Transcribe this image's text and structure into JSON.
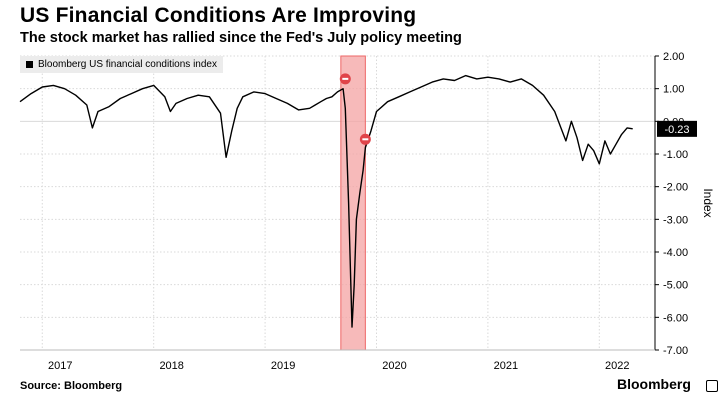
{
  "header": {
    "title": "US Financial Conditions Are Improving",
    "subtitle": "The stock market has rallied since the Fed's July policy meeting"
  },
  "footer": {
    "source": "Source: Bloomberg",
    "brand": "Bloomberg"
  },
  "chart_data": {
    "type": "line",
    "ylabel": "Index",
    "ylim": [
      -7,
      2
    ],
    "yticks": [
      2,
      1,
      0,
      -1,
      -2,
      -3,
      -4,
      -5,
      -6,
      -7
    ],
    "ytick_labels": [
      "2.00",
      "1.00",
      "0.00",
      "-1.00",
      "-2.00",
      "-3.00",
      "-4.00",
      "-5.00",
      "-6.00",
      "-7.00"
    ],
    "xlim": [
      2016.8,
      2022.5
    ],
    "xticks": [
      2017,
      2018,
      2019,
      2020,
      2021,
      2022
    ],
    "xtick_labels": [
      "2017",
      "2018",
      "2019",
      "2020",
      "2021",
      "2022"
    ],
    "grid": true,
    "legend": {
      "position": "top-left",
      "label": "Bloomberg US financial conditions index",
      "color": "#000000"
    },
    "last_value_label": "-0.23",
    "highlight": {
      "x_start": 2019.68,
      "x_end": 2019.9,
      "color": "#f4a3a3"
    },
    "markers": [
      {
        "x": 2019.72,
        "y": 1.3,
        "color": "#e0444a"
      },
      {
        "x": 2019.9,
        "y": -0.55,
        "color": "#e0444a"
      }
    ],
    "series": [
      {
        "name": "Bloomberg US financial conditions index",
        "color": "#000000",
        "x": [
          2016.8,
          2016.9,
          2017.0,
          2017.1,
          2017.2,
          2017.3,
          2017.4,
          2017.45,
          2017.5,
          2017.6,
          2017.7,
          2017.8,
          2017.9,
          2018.0,
          2018.1,
          2018.15,
          2018.2,
          2018.3,
          2018.4,
          2018.5,
          2018.6,
          2018.65,
          2018.7,
          2018.75,
          2018.8,
          2018.9,
          2019.0,
          2019.1,
          2019.2,
          2019.3,
          2019.4,
          2019.45,
          2019.5,
          2019.55,
          2019.6,
          2019.65,
          2019.7,
          2019.72,
          2019.75,
          2019.78,
          2019.8,
          2019.82,
          2019.85,
          2019.88,
          2019.9,
          2019.95,
          2020.0,
          2020.1,
          2020.2,
          2020.3,
          2020.4,
          2020.5,
          2020.6,
          2020.7,
          2020.8,
          2020.9,
          2021.0,
          2021.1,
          2021.2,
          2021.3,
          2021.4,
          2021.5,
          2021.6,
          2021.7,
          2021.75,
          2021.8,
          2021.85,
          2021.9,
          2021.95,
          2022.0,
          2022.05,
          2022.1,
          2022.15,
          2022.2,
          2022.25,
          2022.3
        ],
        "y": [
          0.6,
          0.85,
          1.05,
          1.1,
          1.0,
          0.8,
          0.5,
          -0.2,
          0.3,
          0.45,
          0.7,
          0.85,
          1.0,
          1.1,
          0.75,
          0.3,
          0.55,
          0.7,
          0.8,
          0.75,
          0.25,
          -1.1,
          -0.3,
          0.4,
          0.75,
          0.9,
          0.85,
          0.7,
          0.55,
          0.35,
          0.4,
          0.5,
          0.6,
          0.7,
          0.75,
          0.9,
          1.0,
          0.4,
          -2.5,
          -6.3,
          -5.0,
          -3.0,
          -2.2,
          -1.5,
          -0.8,
          -0.3,
          0.3,
          0.6,
          0.75,
          0.9,
          1.05,
          1.2,
          1.3,
          1.25,
          1.4,
          1.3,
          1.35,
          1.3,
          1.2,
          1.3,
          1.1,
          0.8,
          0.3,
          -0.6,
          0.0,
          -0.5,
          -1.2,
          -0.7,
          -0.9,
          -1.3,
          -0.6,
          -1.0,
          -0.7,
          -0.4,
          -0.2,
          -0.23
        ]
      }
    ]
  }
}
